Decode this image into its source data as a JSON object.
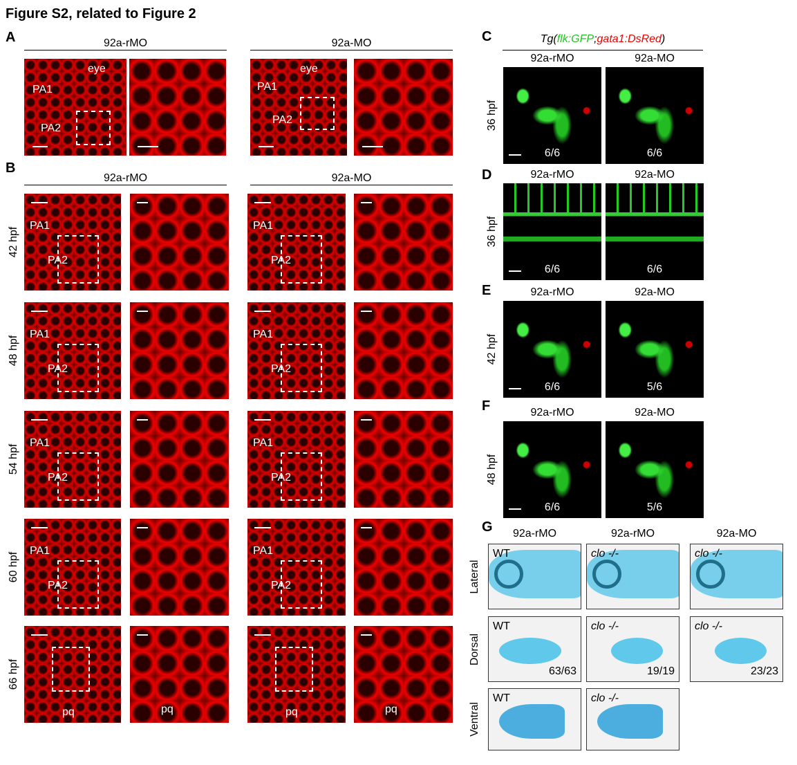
{
  "title": "Figure S2, related to Figure 2",
  "panel_a": {
    "letter": "A",
    "headers": [
      "92a-rMO",
      "92a-MO"
    ],
    "labels": [
      [
        "eye",
        "PA1",
        "PA2"
      ],
      [
        "eye",
        "PA1",
        "PA2"
      ]
    ]
  },
  "panel_b": {
    "letter": "B",
    "headers": [
      "92a-rMO",
      "92a-MO"
    ],
    "rows": [
      {
        "stage": "42 hpf",
        "images": [
          [
            "PA1",
            "PA2"
          ],
          [],
          [
            "PA1",
            "PA2"
          ],
          []
        ]
      },
      {
        "stage": "48 hpf",
        "images": [
          [
            "PA1",
            "PA2"
          ],
          [],
          [
            "PA1",
            "PA2"
          ],
          []
        ]
      },
      {
        "stage": "54 hpf",
        "images": [
          [
            "PA1",
            "PA2"
          ],
          [],
          [
            "PA1",
            "PA2"
          ],
          []
        ]
      },
      {
        "stage": "60 hpf",
        "images": [
          [
            "PA1",
            "PA2"
          ],
          [],
          [
            "PA1",
            "PA2"
          ],
          []
        ]
      },
      {
        "stage": "66 hpf",
        "images": [
          [
            "pq"
          ],
          [
            "pq"
          ],
          [
            "pq"
          ],
          [
            "pq"
          ]
        ]
      }
    ]
  },
  "reporter": {
    "prefix": "Tg(",
    "green": "flk:GFP",
    "sep": ";",
    "red": "gata1:DsRed",
    "suffix": ")"
  },
  "panels_cf": [
    {
      "letter": "C",
      "headers": [
        "92a-rMO",
        "92a-MO"
      ],
      "stage": "36 hpf",
      "counts": [
        "6/6",
        "6/6"
      ]
    },
    {
      "letter": "D",
      "headers": [
        "92a-rMO",
        "92a-MO"
      ],
      "stage": "36 hpf",
      "counts": [
        "6/6",
        "6/6"
      ]
    },
    {
      "letter": "E",
      "headers": [
        "92a-rMO",
        "92a-MO"
      ],
      "stage": "42 hpf",
      "counts": [
        "6/6",
        "5/6"
      ]
    },
    {
      "letter": "F",
      "headers": [
        "92a-rMO",
        "92a-MO"
      ],
      "stage": "48 hpf",
      "counts": [
        "6/6",
        "5/6"
      ]
    }
  ],
  "panel_g": {
    "letter": "G",
    "headers": [
      "92a-rMO",
      "92a-rMO",
      "92a-MO"
    ],
    "rows": [
      {
        "view": "Lateral",
        "genotypes": [
          "WT",
          "clo -/-",
          "clo -/-"
        ],
        "counts": []
      },
      {
        "view": "Dorsal",
        "genotypes": [
          "WT",
          "clo -/-",
          "clo -/-"
        ],
        "counts": [
          "63/63",
          "19/19",
          "23/23"
        ]
      },
      {
        "view": "Ventral",
        "genotypes": [
          "WT",
          "clo -/-"
        ],
        "counts": []
      }
    ]
  }
}
